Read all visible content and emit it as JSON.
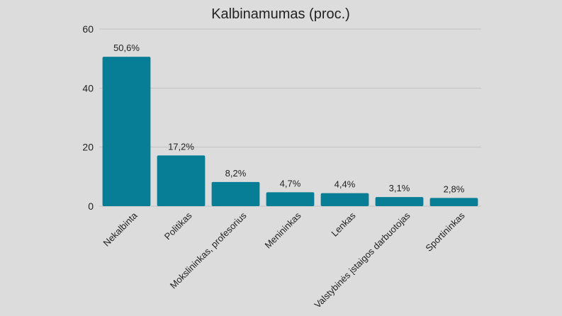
{
  "chart_data": {
    "type": "bar",
    "title": "Kalbinamumas (proc.)",
    "xlabel": "",
    "ylabel": "",
    "ylim": [
      0,
      60
    ],
    "yticks": [
      0,
      20,
      40,
      60
    ],
    "grid": true,
    "legend": "none",
    "bar_color": "#077d96",
    "categories": [
      "Nekalbinta",
      "Politikas",
      "Mokslininkas, profesorius",
      "Menininkas",
      "Lenkas",
      "Valstybinės įstaigos darbuotojas",
      "Sportininkas"
    ],
    "values": [
      50.6,
      17.2,
      8.2,
      4.7,
      4.4,
      3.1,
      2.8
    ],
    "value_labels": [
      "50,6%",
      "17,2%",
      "8,2%",
      "4,7%",
      "4,4%",
      "3,1%",
      "2,8%"
    ]
  }
}
